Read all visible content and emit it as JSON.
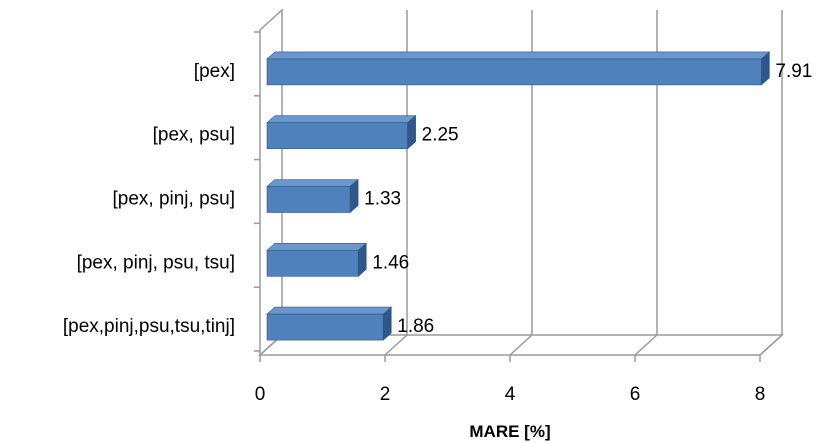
{
  "chart_data": {
    "type": "bar",
    "orientation": "horizontal",
    "style": "3d",
    "categories": [
      "[pex]",
      "[pex, psu]",
      "[pex, pinj, psu]",
      "[pex, pinj, psu, tsu]",
      "[pex,pinj,psu,tsu,tinj]"
    ],
    "values": [
      7.91,
      2.25,
      1.33,
      1.46,
      1.86
    ],
    "data_labels": [
      "7.91",
      "2.25",
      "1.33",
      "1.46",
      "1.86"
    ],
    "title": "",
    "xlabel": "MARE [%]",
    "ylabel": "",
    "xlim": [
      0,
      8
    ],
    "xticks": [
      "0",
      "2",
      "4",
      "6",
      "8"
    ],
    "grid": "vertical",
    "legend": "none",
    "colors": {
      "bar_front": "#4F81BD",
      "bar_top": "#6C97CC",
      "bar_side": "#2F5789",
      "grid": "#9A9A9A"
    }
  }
}
